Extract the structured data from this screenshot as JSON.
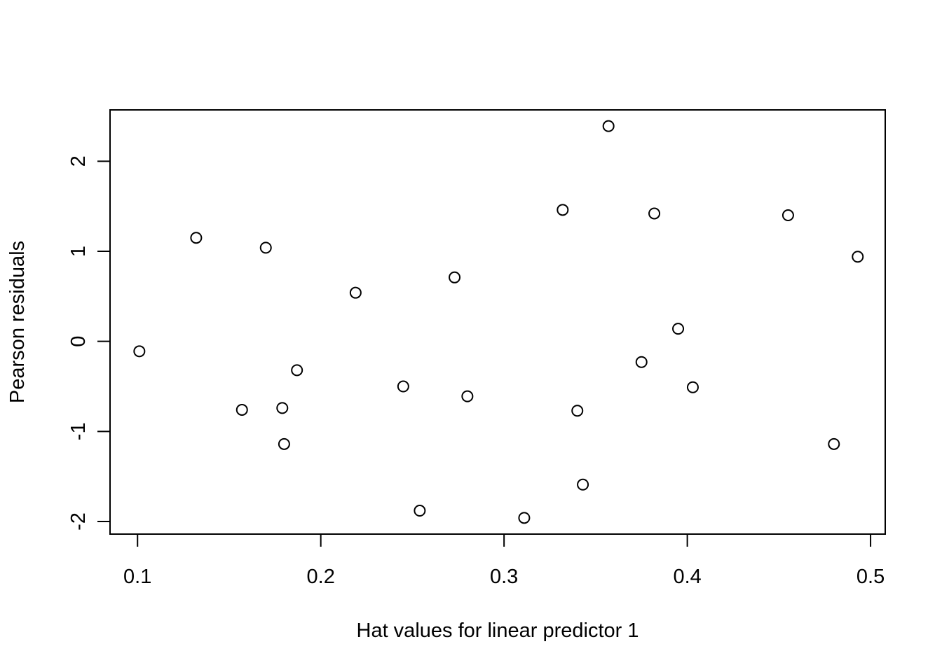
{
  "chart_data": {
    "type": "scatter",
    "title": "",
    "xlabel": "Hat values for linear predictor 1",
    "ylabel": "Pearson residuals",
    "xlim": [
      0.085,
      0.508
    ],
    "ylim": [
      -2.14,
      2.57
    ],
    "x_ticks": [
      0.1,
      0.2,
      0.3,
      0.4,
      0.5
    ],
    "x_tick_labels": [
      "0.1",
      "0.2",
      "0.3",
      "0.4",
      "0.5"
    ],
    "y_ticks": [
      -2,
      -1,
      0,
      1,
      2
    ],
    "y_tick_labels": [
      "-2",
      "-1",
      "0",
      "1",
      "2"
    ],
    "grid": false,
    "marker": "open-circle",
    "points": [
      {
        "x": 0.101,
        "y": -0.11
      },
      {
        "x": 0.132,
        "y": 1.15
      },
      {
        "x": 0.157,
        "y": -0.76
      },
      {
        "x": 0.17,
        "y": 1.04
      },
      {
        "x": 0.179,
        "y": -0.74
      },
      {
        "x": 0.18,
        "y": -1.14
      },
      {
        "x": 0.187,
        "y": -0.32
      },
      {
        "x": 0.219,
        "y": 0.54
      },
      {
        "x": 0.245,
        "y": -0.5
      },
      {
        "x": 0.254,
        "y": -1.88
      },
      {
        "x": 0.273,
        "y": 0.71
      },
      {
        "x": 0.28,
        "y": -0.61
      },
      {
        "x": 0.311,
        "y": -1.96
      },
      {
        "x": 0.332,
        "y": 1.46
      },
      {
        "x": 0.34,
        "y": -0.77
      },
      {
        "x": 0.343,
        "y": -1.59
      },
      {
        "x": 0.357,
        "y": 2.39
      },
      {
        "x": 0.375,
        "y": -0.23
      },
      {
        "x": 0.382,
        "y": 1.42
      },
      {
        "x": 0.395,
        "y": 0.14
      },
      {
        "x": 0.403,
        "y": -0.51
      },
      {
        "x": 0.455,
        "y": 1.4
      },
      {
        "x": 0.48,
        "y": -1.14
      },
      {
        "x": 0.493,
        "y": 0.94
      }
    ]
  }
}
